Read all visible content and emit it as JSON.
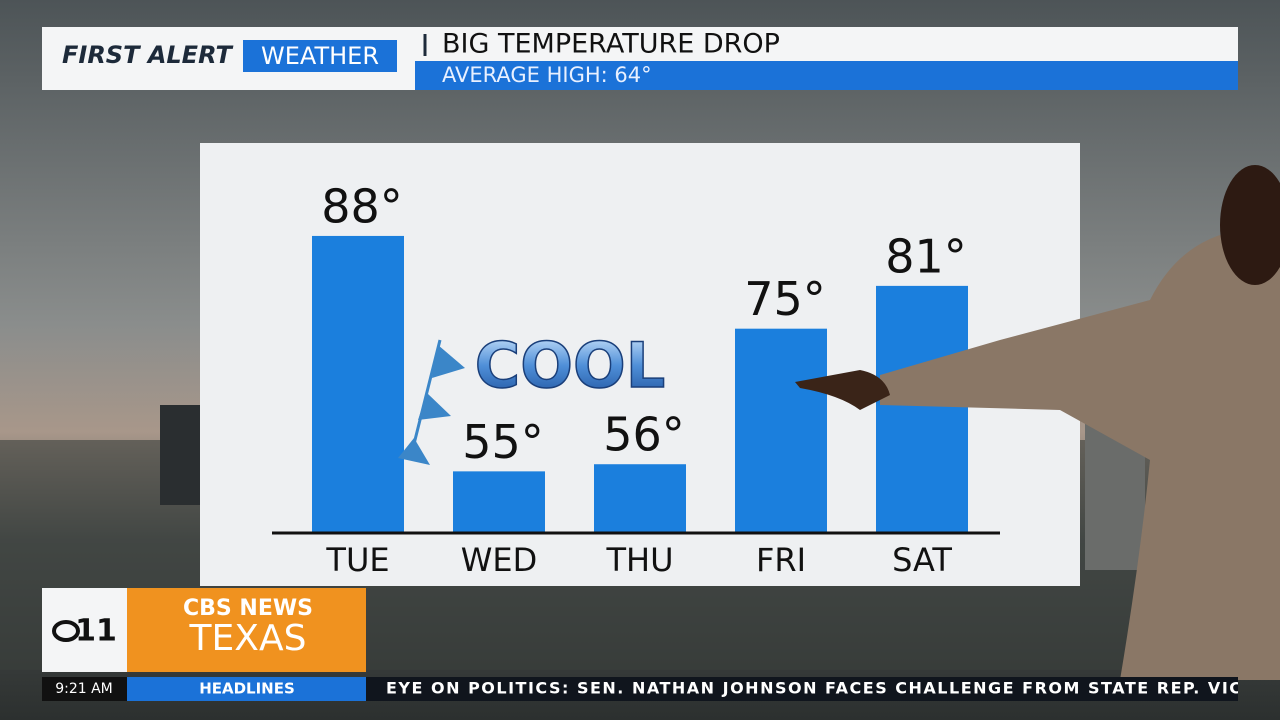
{
  "header": {
    "brand_first": "FIRST ALERT",
    "brand_weather": "WEATHER",
    "title": "BIG TEMPERATURE DROP",
    "subtitle": "AVERAGE HIGH: 64°"
  },
  "chart_data": {
    "type": "bar",
    "categories": [
      "TUE",
      "WED",
      "THU",
      "FRI",
      "SAT"
    ],
    "values": [
      88,
      55,
      56,
      75,
      81
    ],
    "value_labels": [
      "88°",
      "55°",
      "56°",
      "75°",
      "81°"
    ],
    "color": "#1b7fdd",
    "ylim": [
      46.5,
      95
    ],
    "annotation": "COOL"
  },
  "logo": {
    "channel": "11",
    "network": "CBS NEWS",
    "region": "TEXAS"
  },
  "ticker": {
    "time": "9:21 AM",
    "section": "HEADLINES",
    "headline": "EYE ON POLITICS: SEN. NATHAN JOHNSON FACES CHALLENGE FROM STATE REP. VICT"
  }
}
